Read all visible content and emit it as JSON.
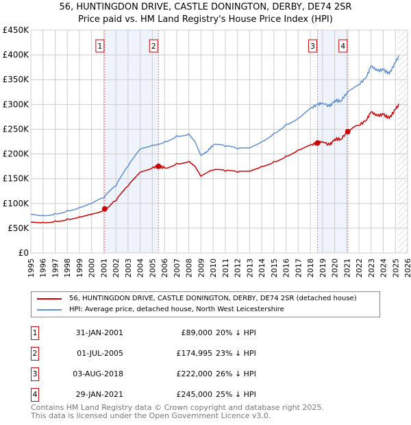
{
  "title": {
    "line1": "56, HUNTINGDON DRIVE, CASTLE DONINGTON, DERBY, DE74 2SR",
    "line2": "Price paid vs. HM Land Registry's House Price Index (HPI)"
  },
  "chart_data": {
    "type": "line",
    "xlim": [
      1995,
      2026
    ],
    "ylim": [
      0,
      450000
    ],
    "x_ticks": [
      "1995",
      "1996",
      "1997",
      "1998",
      "1999",
      "2000",
      "2001",
      "2002",
      "2003",
      "2004",
      "2005",
      "2006",
      "2007",
      "2008",
      "2009",
      "2010",
      "2011",
      "2012",
      "2013",
      "2014",
      "2015",
      "2016",
      "2017",
      "2018",
      "2019",
      "2020",
      "2021",
      "2022",
      "2023",
      "2024",
      "2025",
      "2026"
    ],
    "y_ticks": [
      {
        "v": 0,
        "label": "£0"
      },
      {
        "v": 50000,
        "label": "£50K"
      },
      {
        "v": 100000,
        "label": "£100K"
      },
      {
        "v": 150000,
        "label": "£150K"
      },
      {
        "v": 200000,
        "label": "£200K"
      },
      {
        "v": 250000,
        "label": "£250K"
      },
      {
        "v": 300000,
        "label": "£300K"
      },
      {
        "v": 350000,
        "label": "£350K"
      },
      {
        "v": 400000,
        "label": "£400K"
      },
      {
        "v": 450000,
        "label": "£450K"
      }
    ],
    "grid": true,
    "forecast_start": 2025.2,
    "series": [
      {
        "name": "56, HUNTINGDON DRIVE, CASTLE DONINGTON, DERBY, DE74 2SR (detached house)",
        "color": "#cc0000",
        "x": [
          1995,
          1996,
          1997,
          1998,
          1999,
          2000,
          2001.08,
          2002,
          2003,
          2004,
          2005,
          2005.5,
          2006,
          2007,
          2008,
          2008.5,
          2009,
          2010,
          2011,
          2012,
          2013,
          2014,
          2015,
          2016,
          2017,
          2018,
          2018.59,
          2019,
          2019.6,
          2020,
          2020.5,
          2021.08,
          2022,
          2022.6,
          2023,
          2023.5,
          2024,
          2024.5,
          2025,
          2025.3
        ],
        "y": [
          62000,
          62000,
          65000,
          69000,
          73000,
          78000,
          89000,
          105000,
          135000,
          163000,
          172000,
          174995,
          172000,
          181000,
          185000,
          175000,
          155000,
          167000,
          165000,
          163000,
          165000,
          175000,
          185000,
          196000,
          208000,
          218000,
          222000,
          225000,
          218000,
          230000,
          230000,
          245000,
          258000,
          268000,
          285000,
          277000,
          280000,
          272000,
          290000,
          300000
        ]
      },
      {
        "name": "HPI: Average price, detached house, North West Leicestershire",
        "color": "#5b8fd0",
        "x": [
          1995,
          1996,
          1997,
          1998,
          1999,
          2000,
          2001,
          2002,
          2003,
          2004,
          2005,
          2006,
          2007,
          2008,
          2008.5,
          2009,
          2009.5,
          2010,
          2011,
          2012,
          2013,
          2014,
          2015,
          2016,
          2017,
          2018,
          2018.6,
          2019,
          2019.6,
          2020,
          2020.5,
          2021,
          2022,
          2022.6,
          2023,
          2023.5,
          2024,
          2024.5,
          2025,
          2025.3
        ],
        "y": [
          78000,
          76000,
          80000,
          86000,
          92000,
          100000,
          111000,
          135000,
          175000,
          210000,
          218000,
          225000,
          237000,
          240000,
          225000,
          197000,
          205000,
          218000,
          215000,
          210000,
          212000,
          225000,
          242000,
          260000,
          272000,
          292000,
          300000,
          303000,
          296000,
          308000,
          307000,
          323000,
          340000,
          355000,
          378000,
          368000,
          370000,
          362000,
          385000,
          398000
        ]
      }
    ],
    "sales": [
      {
        "n": "1",
        "x": 2001.08,
        "y": 89000
      },
      {
        "n": "2",
        "x": 2005.5,
        "y": 174995
      },
      {
        "n": "3",
        "x": 2018.59,
        "y": 222000
      },
      {
        "n": "4",
        "x": 2021.08,
        "y": 245000
      }
    ],
    "shaded": [
      [
        2001.08,
        2005.5
      ],
      [
        2018.59,
        2021.08
      ]
    ]
  },
  "legend": {
    "red": "56, HUNTINGDON DRIVE, CASTLE DONINGTON, DERBY, DE74 2SR (detached house)",
    "blue": "HPI: Average price, detached house, North West Leicestershire"
  },
  "transactions": [
    {
      "n": "1",
      "date": "31-JAN-2001",
      "price": "£89,000",
      "hpi": "20% ↓ HPI"
    },
    {
      "n": "2",
      "date": "01-JUL-2005",
      "price": "£174,995",
      "hpi": "23% ↓ HPI"
    },
    {
      "n": "3",
      "date": "03-AUG-2018",
      "price": "£222,000",
      "hpi": "26% ↓ HPI"
    },
    {
      "n": "4",
      "date": "29-JAN-2021",
      "price": "£245,000",
      "hpi": "25% ↓ HPI"
    }
  ],
  "footer": {
    "line1": "Contains HM Land Registry data © Crown copyright and database right 2025.",
    "line2": "This data is licensed under the Open Government Licence v3.0."
  }
}
